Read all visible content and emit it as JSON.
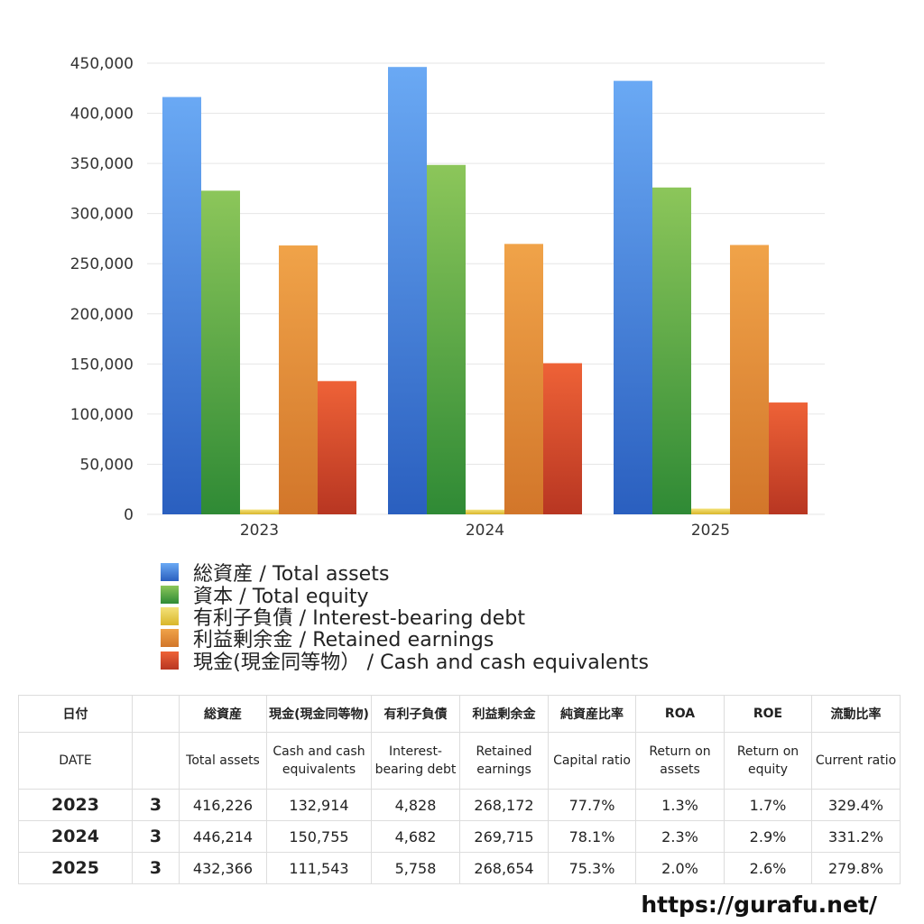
{
  "chart_data": {
    "type": "bar",
    "categories": [
      "2023",
      "2024",
      "2025"
    ],
    "ylim": [
      0,
      450000
    ],
    "yticks": [
      "450,000",
      "400,000",
      "350,000",
      "300,000",
      "250,000",
      "200,000",
      "150,000",
      "100,000",
      "50,000",
      "0"
    ],
    "ytick_values": [
      450000,
      400000,
      350000,
      300000,
      250000,
      200000,
      150000,
      100000,
      50000,
      0
    ],
    "grid": true,
    "legend_position": "bottom",
    "series": [
      {
        "name": "総資産 / Total assets",
        "values": [
          416226,
          446214,
          432366
        ],
        "color_top": "#6aa9f4",
        "color_bottom": "#2a5fbf"
      },
      {
        "name": "資本 / Total equity",
        "values": [
          322800,
          348500,
          326000
        ],
        "color_top": "#8cc65a",
        "color_bottom": "#2f8a35"
      },
      {
        "name": "有利子負債 / Interest-bearing debt",
        "values": [
          4828,
          4682,
          5758
        ],
        "color_top": "#f4e27a",
        "color_bottom": "#d9b62a"
      },
      {
        "name": "利益剰余金 / Retained earnings",
        "values": [
          268172,
          269715,
          268654
        ],
        "color_top": "#f0a349",
        "color_bottom": "#d2762a"
      },
      {
        "name": "現金(現金同等物） /  Cash and cash equivalents",
        "values": [
          132914,
          150755,
          111543
        ],
        "color_top": "#ee6237",
        "color_bottom": "#b83622"
      }
    ]
  },
  "table": {
    "header_jp": [
      "日付",
      "",
      "総資産",
      "現金(現金同等物)",
      "有利子負債",
      "利益剰余金",
      "純資産比率",
      "ROA",
      "ROE",
      "流動比率"
    ],
    "header_en": [
      "DATE",
      "",
      "Total assets",
      "Cash and cash equivalents",
      "Interest-bearing debt",
      "Retained earnings",
      "Capital ratio",
      "Return on assets",
      "Return on equity",
      "Current ratio"
    ],
    "rows": [
      [
        "2023",
        "3",
        "416,226",
        "132,914",
        "4,828",
        "268,172",
        "77.7%",
        "1.3%",
        "1.7%",
        "329.4%"
      ],
      [
        "2024",
        "3",
        "446,214",
        "150,755",
        "4,682",
        "269,715",
        "78.1%",
        "2.3%",
        "2.9%",
        "331.2%"
      ],
      [
        "2025",
        "3",
        "432,366",
        "111,543",
        "5,758",
        "268,654",
        "75.3%",
        "2.0%",
        "2.6%",
        "279.8%"
      ]
    ]
  },
  "footer": {
    "url": "https://gurafu.net/"
  }
}
